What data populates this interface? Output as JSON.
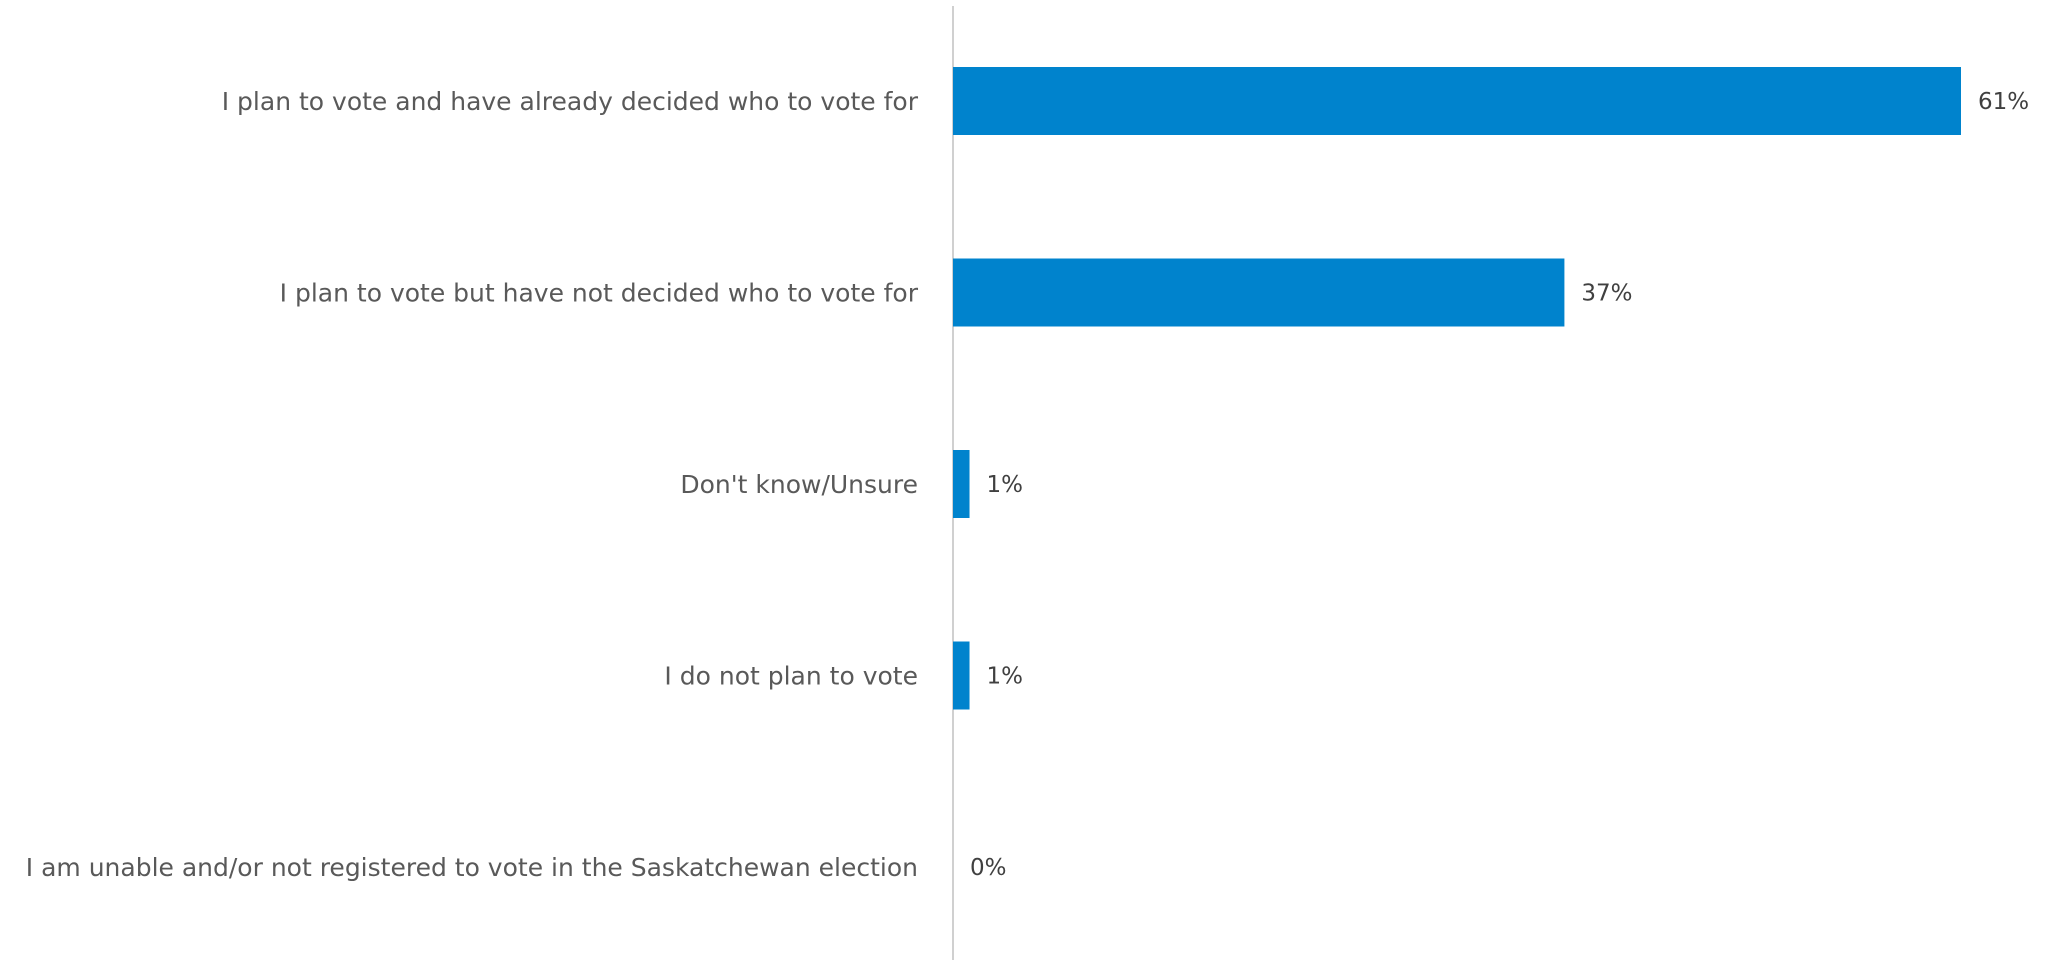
{
  "chart_data": {
    "type": "bar",
    "orientation": "horizontal",
    "categories": [
      "I plan to vote and have already decided who to vote for",
      "I plan to vote but have not decided who to vote for",
      "Don't know/Unsure",
      "I do not plan to vote",
      "I am unable and/or not registered to vote in the Saskatchewan election"
    ],
    "values": [
      61,
      37,
      1,
      1,
      0
    ],
    "value_labels": [
      "61%",
      "37%",
      "1%",
      "1%",
      "0%"
    ],
    "unit": "%",
    "xlim": [
      0,
      61
    ],
    "grid": false,
    "legend": "none",
    "bar_color": "#0083CD",
    "axis_color": "#D0D0D0"
  }
}
